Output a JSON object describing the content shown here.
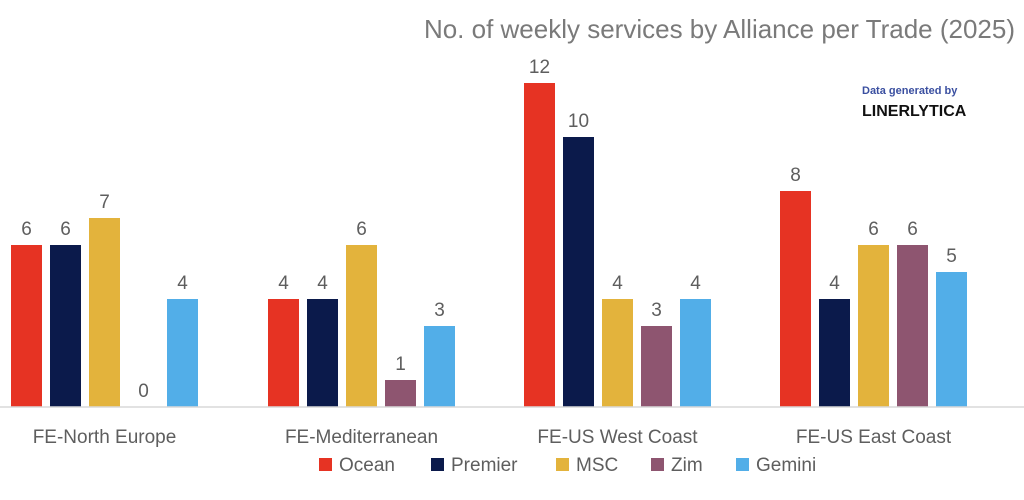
{
  "credit": {
    "line1": "Data generated by",
    "line2": "LINERLYTICA"
  },
  "chart_data": {
    "type": "bar",
    "title": "No. of weekly services by Alliance per Trade (2025)",
    "xlabel": "",
    "ylabel": "",
    "categories": [
      "FE-North Europe",
      "FE-Mediterranean",
      "FE-US West Coast",
      "FE-US East Coast"
    ],
    "series": [
      {
        "name": "Ocean",
        "color": "#e63323",
        "values": [
          6,
          4,
          12,
          8
        ]
      },
      {
        "name": "Premier",
        "color": "#0b1a4b",
        "values": [
          6,
          4,
          10,
          4
        ]
      },
      {
        "name": "MSC",
        "color": "#e3b33c",
        "values": [
          7,
          6,
          4,
          6
        ]
      },
      {
        "name": "Zim",
        "color": "#8e5570",
        "values": [
          0,
          1,
          3,
          6
        ]
      },
      {
        "name": "Gemini",
        "color": "#52aee8",
        "values": [
          4,
          3,
          4,
          5
        ]
      }
    ],
    "ylim": [
      0,
      12
    ],
    "grid": false,
    "legend": "bottom",
    "data_labels": true
  }
}
